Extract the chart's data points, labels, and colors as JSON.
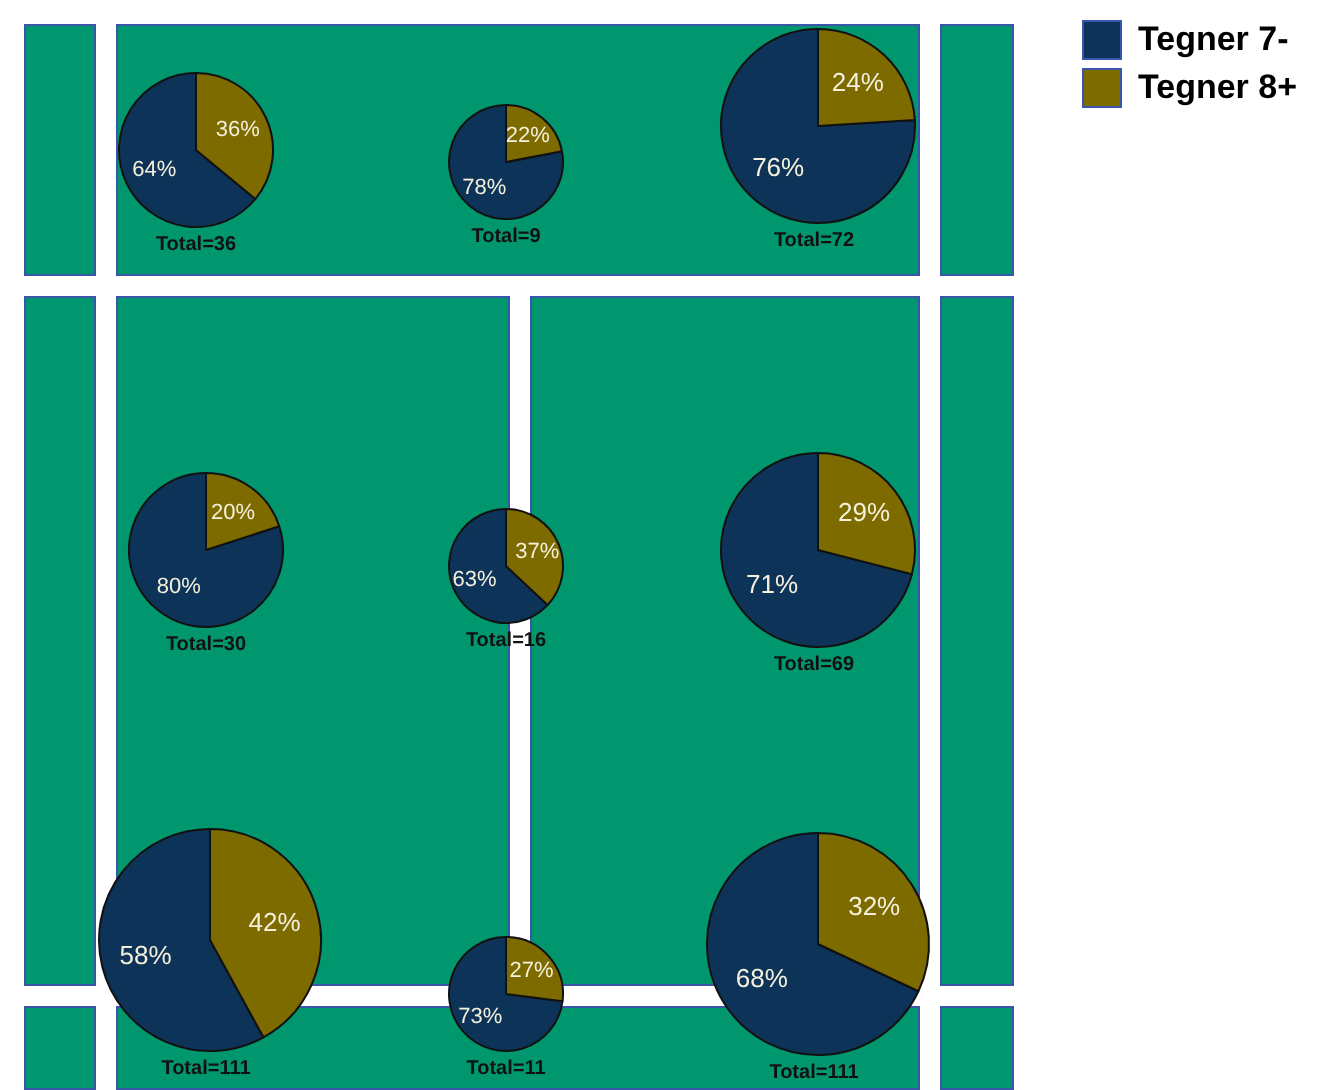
{
  "chart_data": [
    {
      "type": "pie",
      "categories": [
        "Tegner 7-",
        "Tegner 8+"
      ],
      "values": [
        64,
        36
      ],
      "value_labels": [
        "64%",
        "36%"
      ],
      "colors": [
        "#0d3358",
        "#7d6b00"
      ],
      "legend": "top right",
      "annotations": [
        "Total=36"
      ]
    },
    {
      "type": "pie",
      "categories": [
        null,
        null
      ],
      "values": [
        78,
        22
      ],
      "value_labels": [
        "78%",
        "22%"
      ],
      "colors": [
        "#0d3358",
        "#7d6b00"
      ],
      "annotations": [
        "Total=9"
      ]
    },
    {
      "type": "pie",
      "categories": [
        null,
        null
      ],
      "values": [
        76,
        24
      ],
      "value_labels": [
        "76%",
        "24%"
      ],
      "colors": [
        "#0d3358",
        "#7d6b00"
      ],
      "annotations": [
        "Total=72"
      ]
    },
    {
      "type": "pie",
      "categories": [
        null,
        null
      ],
      "values": [
        80,
        20
      ],
      "value_labels": [
        "80%",
        "20%"
      ],
      "colors": [
        "#0d3358",
        "#7d6b00"
      ],
      "annotations": [
        "Total=30"
      ]
    },
    {
      "type": "pie",
      "categories": [
        null,
        null
      ],
      "values": [
        63,
        37
      ],
      "value_labels": [
        "63%",
        "37%"
      ],
      "colors": [
        "#0d3358",
        "#7d6b00"
      ],
      "annotations": [
        "Total=16"
      ]
    },
    {
      "type": "pie",
      "categories": [
        null,
        null
      ],
      "values": [
        71,
        29
      ],
      "value_labels": [
        "71%",
        "29%"
      ],
      "colors": [
        "#0d3358",
        "#7d6b00"
      ],
      "annotations": [
        "Total=69"
      ]
    },
    {
      "type": "pie",
      "categories": [
        null,
        null
      ],
      "values": [
        58,
        42
      ],
      "value_labels": [
        "58%",
        "42%"
      ],
      "colors": [
        "#0d3358",
        "#7d6b00"
      ],
      "annotations": [
        "Total=111"
      ]
    },
    {
      "type": "pie",
      "categories": [
        null,
        null
      ],
      "values": [
        73,
        27
      ],
      "value_labels": [
        "73%",
        "27%"
      ],
      "colors": [
        "#0d3358",
        "#7d6b00"
      ],
      "annotations": [
        "Total=11"
      ]
    },
    {
      "type": "pie",
      "categories": [
        null,
        null
      ],
      "values": [
        68,
        32
      ],
      "value_labels": [
        "68%",
        "32%"
      ],
      "colors": [
        "#0d3358",
        "#7d6b00"
      ],
      "annotations": [
        "Total=111"
      ]
    }
  ]
}
